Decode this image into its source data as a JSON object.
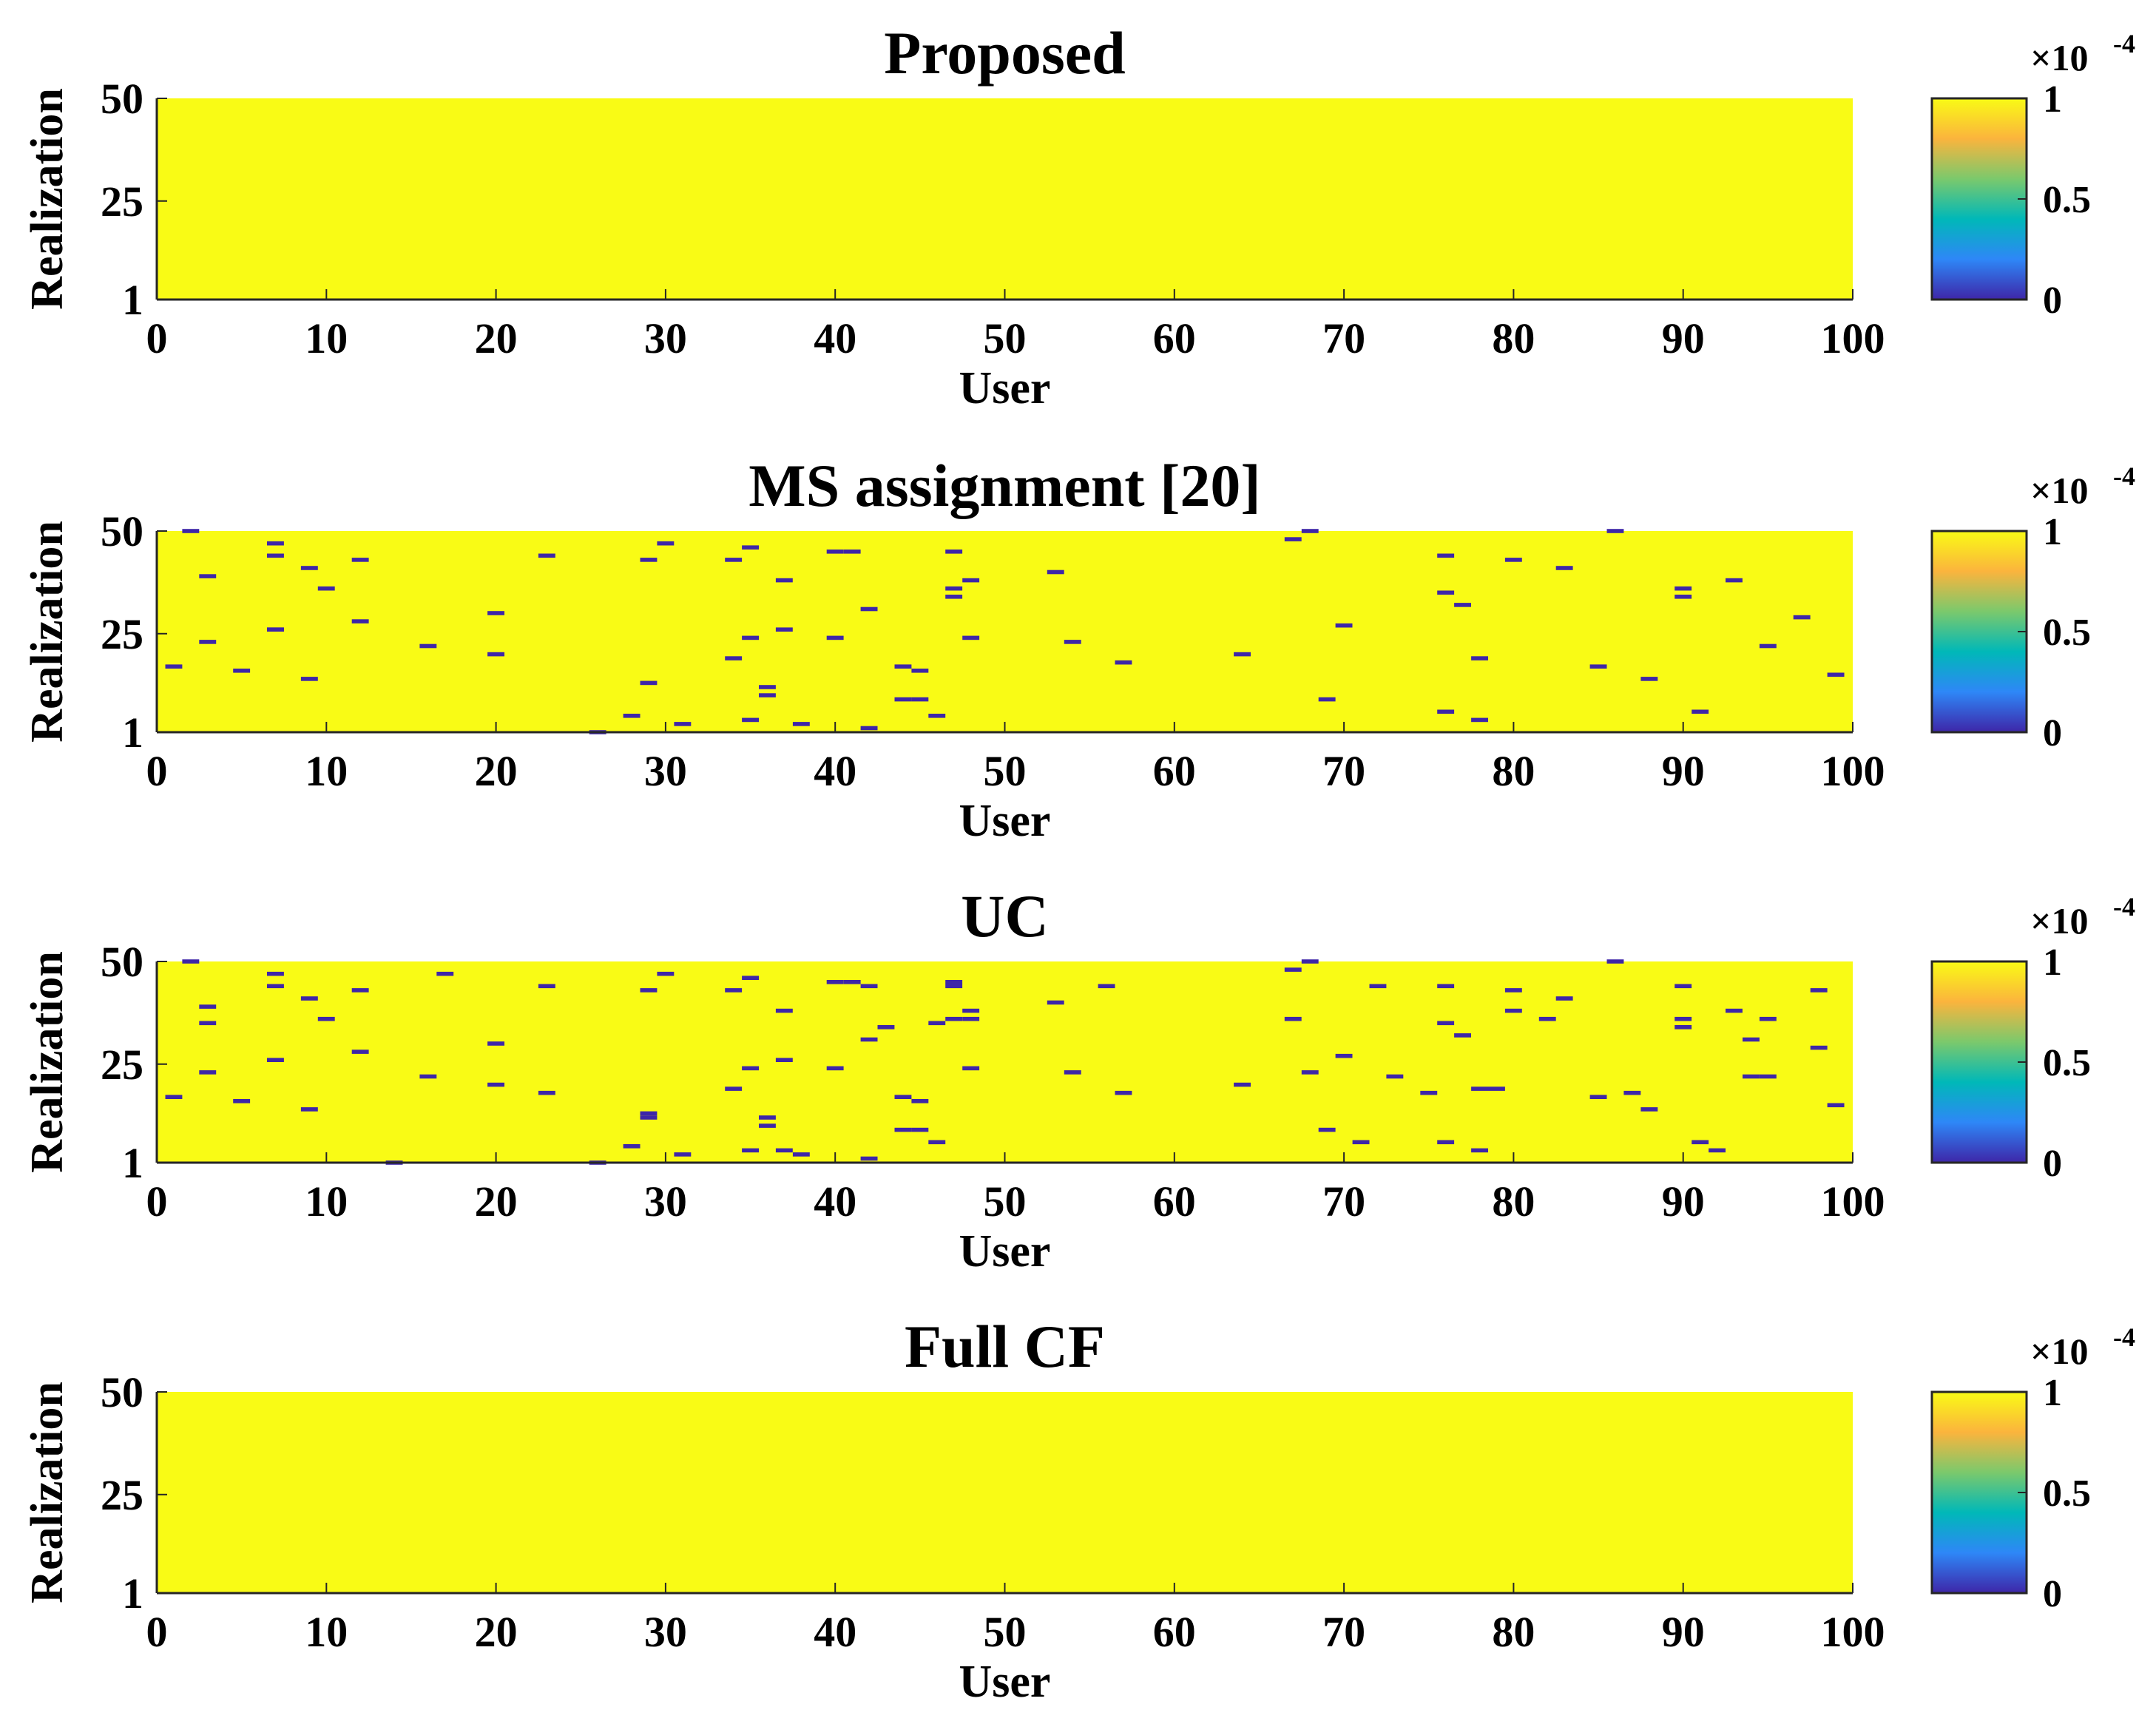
{
  "colors": {
    "background": "#ffffff",
    "text": "#000000",
    "axis": "#262626",
    "colormap": [
      "#3e26a8",
      "#2e87f7",
      "#00b8b8",
      "#7bc96c",
      "#fbb43d",
      "#f9fb15"
    ],
    "high_value": "#f9fb15",
    "low_value": "#3e26a8"
  },
  "chart_data": [
    {
      "type": "heatmap",
      "title": "Proposed",
      "xlabel": "User",
      "ylabel": "Realization",
      "xlim": [
        0,
        100
      ],
      "ylim": [
        1,
        50
      ],
      "xticks": [
        "0",
        "10",
        "20",
        "30",
        "40",
        "50",
        "60",
        "70",
        "80",
        "90",
        "100"
      ],
      "yticks": [
        "1",
        "25",
        "50"
      ],
      "colorbar": {
        "ticks": [
          "0",
          "0.5",
          "1"
        ],
        "range": [
          0,
          1
        ],
        "exponent": "×10",
        "exponent_power": "-4",
        "colormap": "parula"
      },
      "default_value": 1,
      "low_cells": []
    },
    {
      "type": "heatmap",
      "title": "MS assignment [20]",
      "xlabel": "User",
      "ylabel": "Realization",
      "xlim": [
        0,
        100
      ],
      "ylim": [
        1,
        50
      ],
      "xticks": [
        "0",
        "10",
        "20",
        "30",
        "40",
        "50",
        "60",
        "70",
        "80",
        "90",
        "100"
      ],
      "yticks": [
        "1",
        "25",
        "50"
      ],
      "colorbar": {
        "ticks": [
          "0",
          "0.5",
          "1"
        ],
        "range": [
          0,
          1
        ],
        "exponent": "×10",
        "exponent_power": "-4",
        "colormap": "parula"
      },
      "default_value": 1,
      "low_cells": [
        [
          1,
          17
        ],
        [
          2,
          50
        ],
        [
          3,
          39
        ],
        [
          3,
          23
        ],
        [
          5,
          16
        ],
        [
          7,
          47
        ],
        [
          7,
          44
        ],
        [
          7,
          26
        ],
        [
          7,
          26
        ],
        [
          9,
          41
        ],
        [
          9,
          14
        ],
        [
          10,
          36
        ],
        [
          12,
          43
        ],
        [
          12,
          28
        ],
        [
          16,
          22
        ],
        [
          20,
          30
        ],
        [
          20,
          20
        ],
        [
          23,
          44
        ],
        [
          26,
          1
        ],
        [
          28,
          5
        ],
        [
          29,
          43
        ],
        [
          29,
          13
        ],
        [
          30,
          47
        ],
        [
          31,
          3
        ],
        [
          34,
          43
        ],
        [
          34,
          19
        ],
        [
          35,
          46
        ],
        [
          35,
          24
        ],
        [
          35,
          4
        ],
        [
          36,
          12
        ],
        [
          36,
          10
        ],
        [
          37,
          38
        ],
        [
          37,
          26
        ],
        [
          38,
          3
        ],
        [
          40,
          45
        ],
        [
          40,
          24
        ],
        [
          41,
          45
        ],
        [
          42,
          31
        ],
        [
          42,
          2
        ],
        [
          44,
          17
        ],
        [
          44,
          9
        ],
        [
          45,
          16
        ],
        [
          45,
          9
        ],
        [
          46,
          5
        ],
        [
          47,
          36
        ],
        [
          47,
          45
        ],
        [
          47,
          34
        ],
        [
          48,
          38
        ],
        [
          48,
          24
        ],
        [
          53,
          40
        ],
        [
          54,
          23
        ],
        [
          57,
          18
        ],
        [
          64,
          20
        ],
        [
          67,
          48
        ],
        [
          68,
          50
        ],
        [
          69,
          9
        ],
        [
          70,
          27
        ],
        [
          76,
          44
        ],
        [
          76,
          35
        ],
        [
          76,
          6
        ],
        [
          77,
          32
        ],
        [
          78,
          19
        ],
        [
          78,
          4
        ],
        [
          80,
          43
        ],
        [
          83,
          41
        ],
        [
          85,
          17
        ],
        [
          86,
          50
        ],
        [
          88,
          14
        ],
        [
          90,
          36
        ],
        [
          90,
          34
        ],
        [
          91,
          6
        ],
        [
          93,
          38
        ],
        [
          95,
          22
        ],
        [
          97,
          29
        ],
        [
          99,
          15
        ]
      ]
    },
    {
      "type": "heatmap",
      "title": "UC",
      "xlabel": "User",
      "ylabel": "Realization",
      "xlim": [
        0,
        100
      ],
      "ylim": [
        1,
        50
      ],
      "xticks": [
        "0",
        "10",
        "20",
        "30",
        "40",
        "50",
        "60",
        "70",
        "80",
        "90",
        "100"
      ],
      "yticks": [
        "1",
        "25",
        "50"
      ],
      "colorbar": {
        "ticks": [
          "0",
          "0.5",
          "1"
        ],
        "range": [
          0,
          1
        ],
        "exponent": "×10",
        "exponent_power": "-4",
        "colormap": "parula"
      },
      "default_value": 1,
      "low_cells": [
        [
          1,
          17
        ],
        [
          2,
          50
        ],
        [
          3,
          39
        ],
        [
          3,
          35
        ],
        [
          3,
          23
        ],
        [
          5,
          16
        ],
        [
          7,
          47
        ],
        [
          7,
          44
        ],
        [
          7,
          26
        ],
        [
          9,
          41
        ],
        [
          9,
          14
        ],
        [
          10,
          36
        ],
        [
          12,
          43
        ],
        [
          12,
          28
        ],
        [
          14,
          1
        ],
        [
          16,
          22
        ],
        [
          17,
          47
        ],
        [
          20,
          30
        ],
        [
          20,
          20
        ],
        [
          23,
          44
        ],
        [
          23,
          18
        ],
        [
          26,
          1
        ],
        [
          28,
          5
        ],
        [
          29,
          43
        ],
        [
          29,
          13
        ],
        [
          29,
          12
        ],
        [
          30,
          47
        ],
        [
          31,
          3
        ],
        [
          34,
          43
        ],
        [
          34,
          19
        ],
        [
          35,
          46
        ],
        [
          35,
          24
        ],
        [
          35,
          4
        ],
        [
          36,
          12
        ],
        [
          36,
          10
        ],
        [
          37,
          38
        ],
        [
          37,
          26
        ],
        [
          37,
          4
        ],
        [
          38,
          3
        ],
        [
          40,
          45
        ],
        [
          40,
          24
        ],
        [
          41,
          45
        ],
        [
          42,
          44
        ],
        [
          42,
          31
        ],
        [
          42,
          2
        ],
        [
          43,
          34
        ],
        [
          44,
          17
        ],
        [
          44,
          9
        ],
        [
          45,
          16
        ],
        [
          45,
          9
        ],
        [
          46,
          35
        ],
        [
          46,
          6
        ],
        [
          47,
          45
        ],
        [
          47,
          44
        ],
        [
          47,
          36
        ],
        [
          48,
          38
        ],
        [
          48,
          36
        ],
        [
          48,
          24
        ],
        [
          53,
          40
        ],
        [
          54,
          23
        ],
        [
          56,
          44
        ],
        [
          57,
          18
        ],
        [
          64,
          20
        ],
        [
          67,
          48
        ],
        [
          67,
          36
        ],
        [
          68,
          50
        ],
        [
          68,
          23
        ],
        [
          69,
          9
        ],
        [
          70,
          27
        ],
        [
          71,
          6
        ],
        [
          72,
          44
        ],
        [
          73,
          22
        ],
        [
          75,
          18
        ],
        [
          76,
          44
        ],
        [
          76,
          35
        ],
        [
          76,
          6
        ],
        [
          77,
          32
        ],
        [
          78,
          19
        ],
        [
          78,
          4
        ],
        [
          79,
          19
        ],
        [
          80,
          43
        ],
        [
          80,
          38
        ],
        [
          82,
          36
        ],
        [
          83,
          41
        ],
        [
          85,
          17
        ],
        [
          86,
          50
        ],
        [
          87,
          18
        ],
        [
          88,
          14
        ],
        [
          90,
          44
        ],
        [
          90,
          36
        ],
        [
          90,
          34
        ],
        [
          91,
          6
        ],
        [
          92,
          4
        ],
        [
          93,
          38
        ],
        [
          94,
          31
        ],
        [
          94,
          22
        ],
        [
          95,
          36
        ],
        [
          95,
          22
        ],
        [
          98,
          43
        ],
        [
          98,
          29
        ],
        [
          99,
          15
        ]
      ]
    },
    {
      "type": "heatmap",
      "title": "Full CF",
      "xlabel": "User",
      "ylabel": "Realization",
      "xlim": [
        0,
        100
      ],
      "ylim": [
        1,
        50
      ],
      "xticks": [
        "0",
        "10",
        "20",
        "30",
        "40",
        "50",
        "60",
        "70",
        "80",
        "90",
        "100"
      ],
      "yticks": [
        "1",
        "25",
        "50"
      ],
      "colorbar": {
        "ticks": [
          "0",
          "0.5",
          "1"
        ],
        "range": [
          0,
          1
        ],
        "exponent": "×10",
        "exponent_power": "-4",
        "colormap": "parula"
      },
      "default_value": 1,
      "low_cells": []
    }
  ]
}
